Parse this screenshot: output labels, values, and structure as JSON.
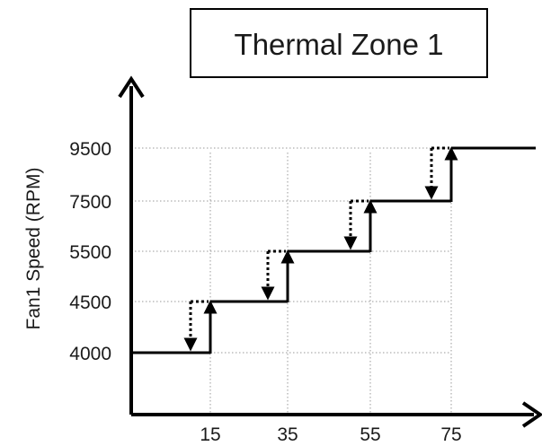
{
  "title": "Thermal Zone 1",
  "y_axis_label": "Fan1  Speed (RPM)",
  "chart_data": {
    "type": "line",
    "subtype": "step-hysteresis",
    "title": "Thermal Zone 1",
    "xlabel": "",
    "ylabel": "Fan1  Speed (RPM)",
    "x_ticks": [
      "15",
      "35",
      "55",
      "75"
    ],
    "y_ticks": [
      "4000",
      "4500",
      "5500",
      "7500",
      "9500"
    ],
    "series": [
      {
        "x": [
          15,
          35,
          55,
          75
        ],
        "up_from": [
          "4000",
          "4500",
          "5500",
          "7500"
        ],
        "up_to": [
          "4500",
          "5500",
          "7500",
          "9500"
        ]
      }
    ],
    "hysteresis": [
      {
        "x": 15,
        "from": "4500",
        "to": "4000"
      },
      {
        "x": 35,
        "from": "5500",
        "to": "4500"
      },
      {
        "x": 55,
        "from": "7500",
        "to": "5500"
      },
      {
        "x": 75,
        "from": "9500",
        "to": "7500"
      }
    ],
    "grid": "dotted guide lines at ticks",
    "legend": "none"
  }
}
